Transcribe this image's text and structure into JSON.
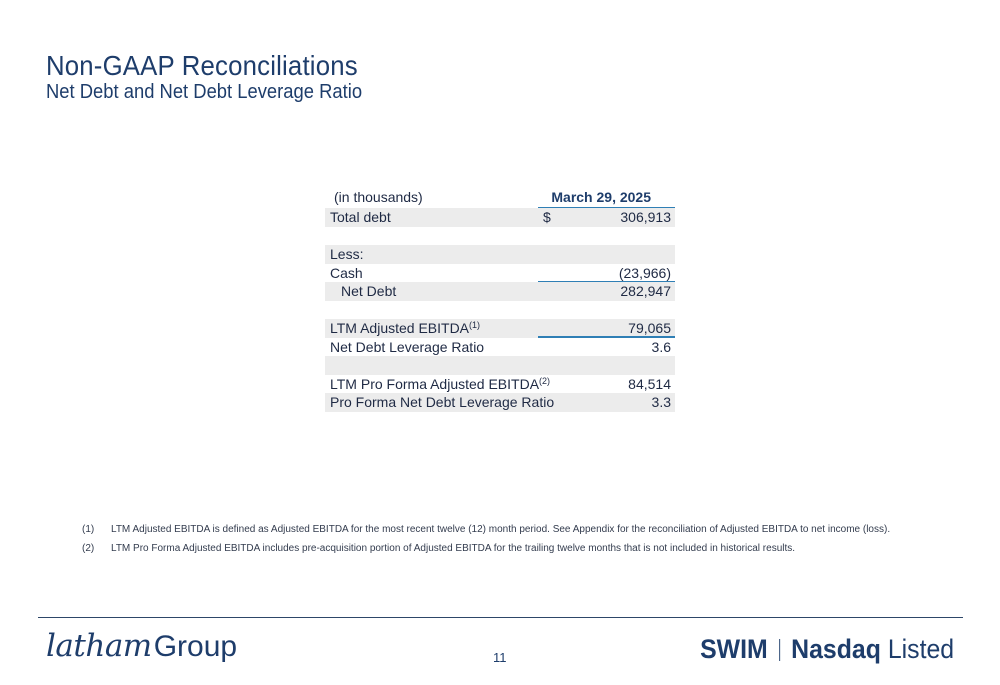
{
  "header": {
    "title": "Non-GAAP Reconciliations",
    "subtitle": "Net Debt and Net Debt Leverage Ratio"
  },
  "table": {
    "unit_label": "(in thousands)",
    "column_header": "March 29, 2025",
    "rows": [
      {
        "label": "Total debt",
        "currency": "$",
        "value": "306,913",
        "shaded": true
      },
      {
        "label": "",
        "value": "",
        "shaded": false
      },
      {
        "label": "Less:",
        "value": "",
        "shaded": true
      },
      {
        "label": "Cash",
        "value": "(23,966)",
        "shaded": false
      },
      {
        "label": "Net Debt",
        "value": "282,947",
        "shaded": true,
        "indent": true
      },
      {
        "label": "",
        "value": "",
        "shaded": false
      },
      {
        "label": "LTM Adjusted EBITDA",
        "footnote_ref": "(1)",
        "value": "79,065",
        "shaded": true
      },
      {
        "label": "Net Debt Leverage Ratio",
        "value": "3.6",
        "shaded": false
      },
      {
        "label": "",
        "value": "",
        "shaded": true
      },
      {
        "label": "LTM Pro Forma Adjusted EBITDA",
        "footnote_ref": "(2)",
        "value": "84,514",
        "shaded": false
      },
      {
        "label": "Pro Forma Net Debt Leverage Ratio",
        "value": "3.3",
        "shaded": true
      }
    ]
  },
  "footnotes": [
    {
      "mark": "(1)",
      "text": "LTM Adjusted EBITDA is defined as Adjusted EBITDA for the most recent twelve (12) month period. See Appendix for the reconciliation of Adjusted EBITDA to net income (loss)."
    },
    {
      "mark": "(2)",
      "text": "LTM Pro Forma Adjusted EBITDA includes pre-acquisition portion of Adjusted EBITDA for the trailing twelve months that is not included in historical results."
    }
  ],
  "footer": {
    "company_script": "latham",
    "company_suffix": "Group",
    "page_number": "11",
    "ticker": "SWIM",
    "exchange_bold": "Nasdaq",
    "exchange_suffix": "Listed"
  },
  "colors": {
    "brand_navy": "#1e3d6b",
    "accent_blue_rule": "#2f7fb5",
    "row_shade": "#ececec"
  }
}
